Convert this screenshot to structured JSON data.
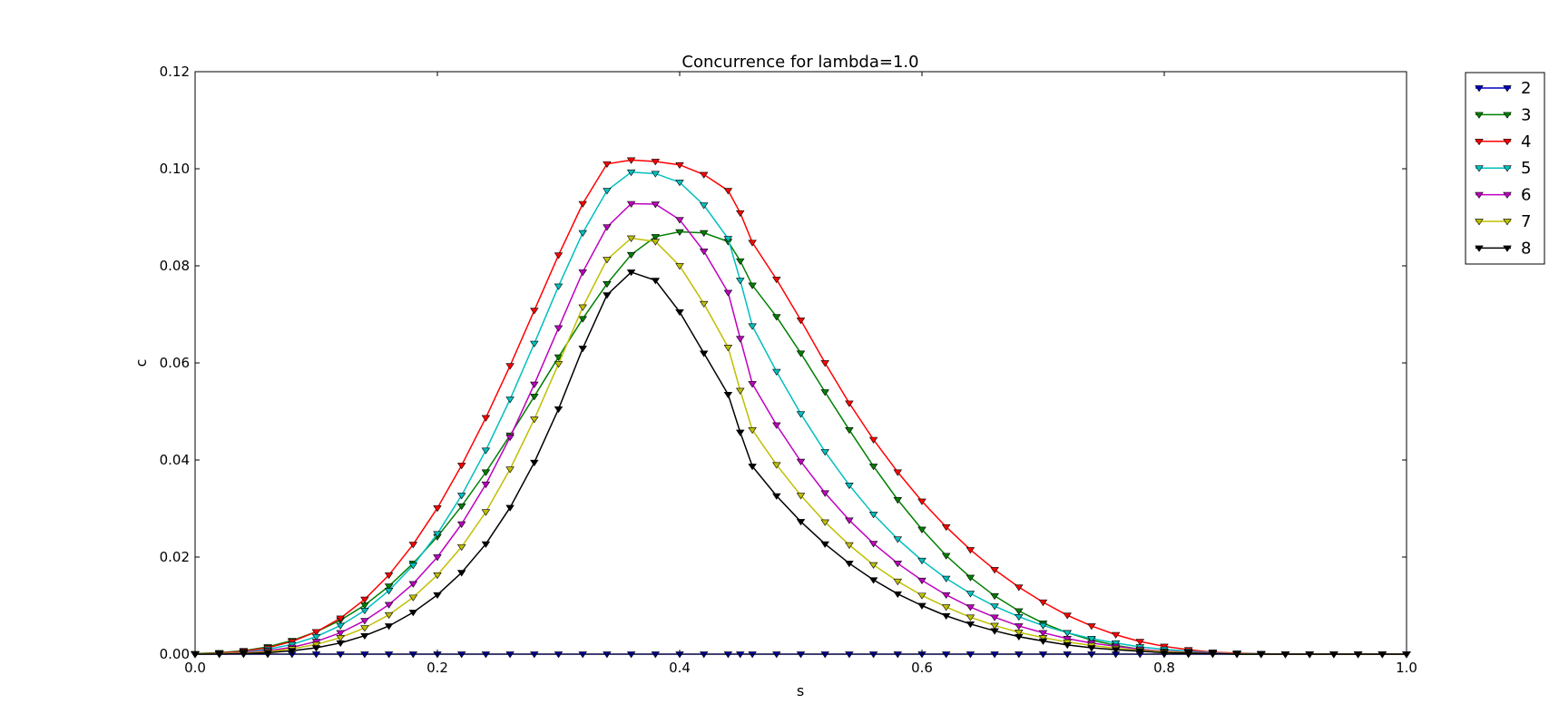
{
  "chart_data": {
    "type": "line",
    "title": "Concurrence for lambda=1.0",
    "xlabel": "s",
    "ylabel": "c",
    "xlim": [
      0.0,
      1.0
    ],
    "ylim": [
      0.0,
      0.12
    ],
    "xticks": [
      "0.0",
      "0.2",
      "0.4",
      "0.6",
      "0.8",
      "1.0"
    ],
    "yticks": [
      "0.00",
      "0.02",
      "0.04",
      "0.06",
      "0.08",
      "0.10",
      "0.12"
    ],
    "grid": false,
    "legend_position": "outside-top-right",
    "marker": "triangle-down",
    "x": [
      0.0,
      0.02,
      0.04,
      0.06,
      0.08,
      0.1,
      0.12,
      0.14,
      0.16,
      0.18,
      0.2,
      0.22,
      0.24,
      0.26,
      0.28,
      0.3,
      0.32,
      0.34,
      0.36,
      0.38,
      0.4,
      0.42,
      0.44,
      0.45,
      0.46,
      0.48,
      0.5,
      0.52,
      0.54,
      0.56,
      0.58,
      0.6,
      0.62,
      0.64,
      0.66,
      0.68,
      0.7,
      0.72,
      0.74,
      0.76,
      0.78,
      0.8,
      0.82,
      0.84,
      0.86,
      0.88,
      0.9,
      0.92,
      0.94,
      0.96,
      0.98,
      1.0
    ],
    "series": [
      {
        "name": "2",
        "color": "#0000bf",
        "values": [
          0,
          0,
          0,
          0,
          0,
          0,
          0,
          0,
          0,
          0,
          0,
          0,
          0,
          0,
          0,
          0,
          0,
          0,
          0,
          0,
          0,
          0,
          0,
          0,
          0,
          0,
          0,
          0,
          0,
          0,
          0,
          0,
          0,
          0,
          0,
          0,
          0,
          0,
          0,
          0,
          0,
          0,
          0,
          0,
          0,
          0,
          0,
          0,
          0,
          0,
          0,
          0
        ]
      },
      {
        "name": "3",
        "color": "#007f00",
        "values": [
          0.0001,
          0.0003,
          0.0007,
          0.0015,
          0.0028,
          0.0046,
          0.007,
          0.0101,
          0.014,
          0.0187,
          0.0242,
          0.0305,
          0.0375,
          0.0451,
          0.0531,
          0.0612,
          0.0691,
          0.0763,
          0.0823,
          0.086,
          0.087,
          0.0868,
          0.085,
          0.081,
          0.076,
          0.0695,
          0.062,
          0.054,
          0.0462,
          0.0387,
          0.0318,
          0.0257,
          0.0203,
          0.0158,
          0.012,
          0.0089,
          0.0064,
          0.0044,
          0.0029,
          0.0018,
          0.001,
          0.0005,
          0.0002,
          0.0001,
          0.0,
          0.0,
          0.0,
          0.0,
          0.0,
          0.0,
          0.0,
          0.0
        ]
      },
      {
        "name": "4",
        "color": "#ff0000",
        "values": [
          0.0,
          0.0002,
          0.0006,
          0.0013,
          0.0026,
          0.0046,
          0.0074,
          0.0113,
          0.0163,
          0.0226,
          0.0301,
          0.0389,
          0.0487,
          0.0594,
          0.0708,
          0.0822,
          0.0928,
          0.101,
          0.1018,
          0.1015,
          0.1008,
          0.0988,
          0.0955,
          0.0909,
          0.0848,
          0.0772,
          0.0688,
          0.06,
          0.0517,
          0.0442,
          0.0375,
          0.0315,
          0.0262,
          0.0215,
          0.0174,
          0.0138,
          0.0107,
          0.008,
          0.0058,
          0.004,
          0.0026,
          0.0016,
          0.0009,
          0.0004,
          0.0002,
          0.0001,
          0.0,
          0.0,
          0.0,
          0.0,
          0.0,
          0.0
        ]
      },
      {
        "name": "5",
        "color": "#00bfbf",
        "values": [
          0.0,
          0.0001,
          0.0004,
          0.001,
          0.002,
          0.0036,
          0.0059,
          0.009,
          0.0131,
          0.0183,
          0.0248,
          0.0327,
          0.042,
          0.0525,
          0.064,
          0.0758,
          0.0868,
          0.0955,
          0.0993,
          0.099,
          0.0972,
          0.0925,
          0.0856,
          0.077,
          0.0676,
          0.0582,
          0.0495,
          0.0417,
          0.0348,
          0.0288,
          0.0237,
          0.0193,
          0.0156,
          0.0125,
          0.0099,
          0.0077,
          0.0059,
          0.0044,
          0.0032,
          0.0023,
          0.0015,
          0.001,
          0.0006,
          0.0003,
          0.0001,
          0.0001,
          0.0,
          0.0,
          0.0,
          0.0,
          0.0,
          0.0
        ]
      },
      {
        "name": "6",
        "color": "#bf00bf",
        "values": [
          0.0,
          0.0001,
          0.0003,
          0.0007,
          0.0014,
          0.0026,
          0.0044,
          0.0069,
          0.0102,
          0.0145,
          0.02,
          0.0268,
          0.035,
          0.0447,
          0.0556,
          0.0672,
          0.0787,
          0.088,
          0.0928,
          0.0927,
          0.0895,
          0.083,
          0.0745,
          0.065,
          0.0557,
          0.0472,
          0.0397,
          0.0332,
          0.0276,
          0.0228,
          0.0187,
          0.0152,
          0.0122,
          0.0097,
          0.0076,
          0.0058,
          0.0044,
          0.0032,
          0.0023,
          0.0016,
          0.001,
          0.0006,
          0.0004,
          0.0002,
          0.0001,
          0.0,
          0.0,
          0.0,
          0.0,
          0.0,
          0.0,
          0.0
        ]
      },
      {
        "name": "7",
        "color": "#bfbf00",
        "values": [
          0.0,
          0.0001,
          0.0002,
          0.0005,
          0.0011,
          0.002,
          0.0034,
          0.0054,
          0.0081,
          0.0117,
          0.0163,
          0.0221,
          0.0293,
          0.0381,
          0.0484,
          0.0598,
          0.0715,
          0.0813,
          0.0857,
          0.085,
          0.08,
          0.0722,
          0.0632,
          0.0543,
          0.0462,
          0.039,
          0.0327,
          0.0272,
          0.0225,
          0.0184,
          0.015,
          0.0121,
          0.0097,
          0.0076,
          0.0059,
          0.0045,
          0.0034,
          0.0025,
          0.0018,
          0.0012,
          0.0008,
          0.0005,
          0.0003,
          0.0001,
          0.0001,
          0.0,
          0.0,
          0.0,
          0.0,
          0.0,
          0.0,
          0.0
        ]
      },
      {
        "name": "8",
        "color": "#000000",
        "values": [
          0.0,
          0.0,
          0.0001,
          0.0003,
          0.0007,
          0.0013,
          0.0023,
          0.0038,
          0.0058,
          0.0086,
          0.0122,
          0.0168,
          0.0227,
          0.0302,
          0.0395,
          0.0505,
          0.063,
          0.074,
          0.0787,
          0.077,
          0.0705,
          0.062,
          0.0535,
          0.0457,
          0.0387,
          0.0326,
          0.0273,
          0.0227,
          0.0187,
          0.0153,
          0.0124,
          0.01,
          0.0079,
          0.0062,
          0.0048,
          0.0036,
          0.0027,
          0.0019,
          0.0013,
          0.0009,
          0.0006,
          0.0003,
          0.0002,
          0.0001,
          0.0,
          0.0,
          0.0,
          0.0,
          0.0,
          0.0,
          0.0,
          0.0
        ]
      }
    ]
  }
}
